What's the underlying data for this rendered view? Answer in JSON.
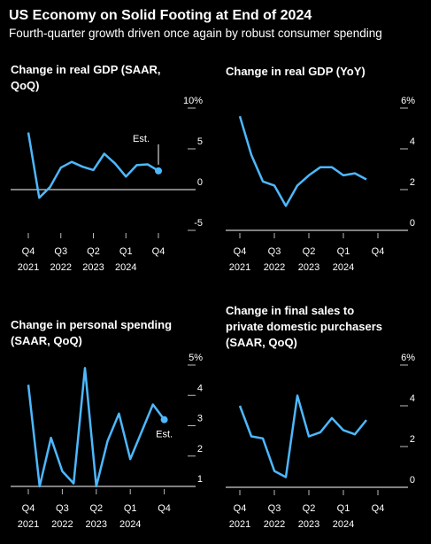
{
  "title": "US Economy on Solid Footing at End of 2024",
  "subtitle": "Fourth-quarter growth driven once again by robust consumer spending",
  "chart_data": [
    {
      "type": "line",
      "title": [
        "Change in real GDP (SAAR,",
        "QoQ)"
      ],
      "categories": [
        [
          "Q4",
          "2021"
        ],
        null,
        null,
        [
          "Q3",
          "2022"
        ],
        null,
        null,
        [
          "Q2",
          "2023"
        ],
        null,
        null,
        [
          "Q1",
          "2024"
        ],
        null,
        null,
        [
          "Q4"
        ]
      ],
      "series": [
        {
          "color": "#4db8ff",
          "values": [
            7.0,
            -1.0,
            0.3,
            2.7,
            3.4,
            2.8,
            2.4,
            4.4,
            3.2,
            1.6,
            3.0,
            3.1,
            2.3
          ]
        }
      ],
      "ylim": [
        -5,
        10
      ],
      "yticks": [
        {
          "value": 10,
          "label": "10%"
        },
        5,
        0,
        -5
      ],
      "annotation": "Est."
    },
    {
      "type": "line",
      "title": [
        "Change in real GDP (YoY)"
      ],
      "categories": [
        [
          "Q4",
          "2021"
        ],
        null,
        null,
        [
          "Q3",
          "2022"
        ],
        null,
        null,
        [
          "Q2",
          "2023"
        ],
        null,
        null,
        [
          "Q1",
          "2024"
        ],
        null,
        null,
        [
          "Q4"
        ]
      ],
      "series": [
        {
          "color": "#4db8ff",
          "values": [
            5.6,
            3.7,
            2.4,
            2.2,
            1.2,
            2.2,
            2.7,
            3.1,
            3.1,
            2.7,
            2.8,
            2.5,
            null
          ]
        }
      ],
      "ylim": [
        0,
        6
      ],
      "yticks": [
        {
          "value": 6,
          "label": "6%"
        },
        4,
        2,
        0
      ]
    },
    {
      "type": "line",
      "title": [
        "Change in personal spending",
        "(SAAR, QoQ)"
      ],
      "categories": [
        [
          "Q4",
          "2021"
        ],
        null,
        null,
        [
          "Q3",
          "2022"
        ],
        null,
        null,
        [
          "Q2",
          "2023"
        ],
        null,
        null,
        [
          "Q1",
          "2024"
        ],
        null,
        null,
        [
          "Q4"
        ]
      ],
      "series": [
        {
          "color": "#4db8ff",
          "values": [
            4.35,
            1.0,
            2.6,
            1.5,
            1.1,
            4.9,
            1.0,
            2.5,
            3.4,
            1.9,
            2.8,
            3.7,
            3.2
          ]
        }
      ],
      "ylim": [
        1,
        5
      ],
      "yticks": [
        {
          "value": 5,
          "label": "5%"
        },
        4,
        3,
        2,
        1
      ],
      "annotation": "Est."
    },
    {
      "type": "line",
      "title": [
        "Change in final sales to",
        "private domestic purchasers",
        "(SAAR, QoQ)"
      ],
      "categories": [
        [
          "Q4",
          "2021"
        ],
        null,
        null,
        [
          "Q3",
          "2022"
        ],
        null,
        null,
        [
          "Q2",
          "2023"
        ],
        null,
        null,
        [
          "Q1",
          "2024"
        ],
        null,
        null,
        [
          "Q4"
        ]
      ],
      "series": [
        {
          "color": "#4db8ff",
          "values": [
            4.0,
            2.5,
            2.4,
            0.8,
            0.5,
            4.5,
            2.5,
            2.7,
            3.4,
            2.8,
            2.6,
            3.3,
            null
          ]
        }
      ],
      "ylim": [
        0,
        6
      ],
      "yticks": [
        {
          "value": 6,
          "label": "6%"
        },
        4,
        2,
        0
      ]
    }
  ]
}
